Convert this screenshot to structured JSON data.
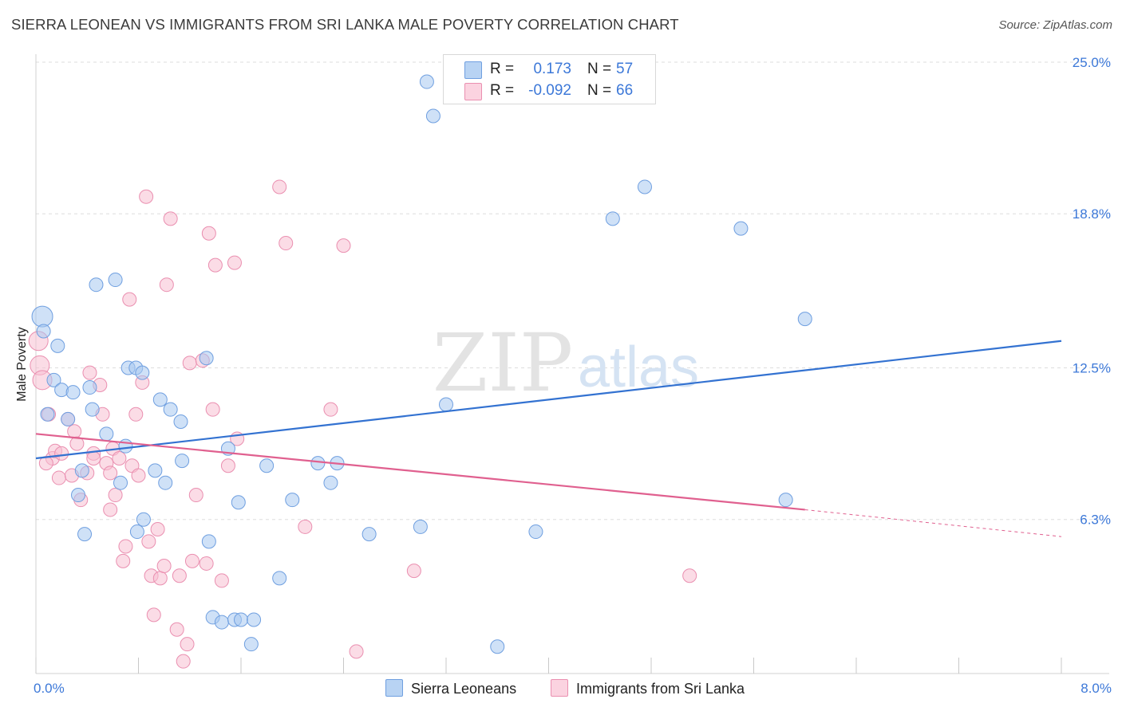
{
  "title": "SIERRA LEONEAN VS IMMIGRANTS FROM SRI LANKA MALE POVERTY CORRELATION CHART",
  "source": "Source: ZipAtlas.com",
  "watermark": {
    "zip": "ZIP",
    "atlas": "atlas"
  },
  "legend": {
    "rows": [
      {
        "r_label": "R =",
        "r_value": "0.173",
        "n_label": "N =",
        "n_value": "57",
        "color": "#a8c8f0",
        "border": "#6f9fe0"
      },
      {
        "r_label": "R =",
        "r_value": "-0.092",
        "n_label": "N =",
        "n_value": "66",
        "color": "#f7bfd2",
        "border": "#ea8fb0"
      }
    ]
  },
  "bottom_legend": {
    "series1": "Sierra Leoneans",
    "series2": "Immigrants from Sri Lanka"
  },
  "colors": {
    "blue_fill": "#a8c8f0",
    "blue_stroke": "#6f9fe0",
    "blue_line": "#3372d1",
    "pink_fill": "#f7bfd2",
    "pink_stroke": "#ea8fb0",
    "pink_line": "#e0608f",
    "axis_text": "#3c78d8",
    "grid": "#dddddd"
  },
  "chart_data": {
    "type": "scatter",
    "title": "SIERRA LEONEAN VS IMMIGRANTS FROM SRI LANKA MALE POVERTY CORRELATION CHART",
    "xlabel": "",
    "ylabel": "Male Poverty",
    "xlim": [
      0,
      8.0
    ],
    "ylim": [
      0,
      25.0
    ],
    "x_tick_labels": [
      "0.0%",
      "8.0%"
    ],
    "y_ticks": [
      6.3,
      12.5,
      18.8,
      25.0
    ],
    "y_tick_labels": [
      "6.3%",
      "12.5%",
      "18.8%",
      "25.0%"
    ],
    "series": [
      {
        "name": "Sierra Leoneans",
        "r": 0.173,
        "n": 57,
        "trend": {
          "x": [
            0,
            8.0
          ],
          "y": [
            8.8,
            13.6
          ]
        },
        "points": [
          [
            0.05,
            14.6
          ],
          [
            0.06,
            14.0
          ],
          [
            0.09,
            10.6
          ],
          [
            0.14,
            12.0
          ],
          [
            0.17,
            13.4
          ],
          [
            0.2,
            11.6
          ],
          [
            0.25,
            10.4
          ],
          [
            0.29,
            11.5
          ],
          [
            0.33,
            7.3
          ],
          [
            0.36,
            8.3
          ],
          [
            0.38,
            5.7
          ],
          [
            0.42,
            11.7
          ],
          [
            0.44,
            10.8
          ],
          [
            0.47,
            15.9
          ],
          [
            0.55,
            9.8
          ],
          [
            0.62,
            16.1
          ],
          [
            0.66,
            7.8
          ],
          [
            0.7,
            9.3
          ],
          [
            0.72,
            12.5
          ],
          [
            0.78,
            12.5
          ],
          [
            0.79,
            5.8
          ],
          [
            0.83,
            12.3
          ],
          [
            0.84,
            6.3
          ],
          [
            0.93,
            8.3
          ],
          [
            0.97,
            11.2
          ],
          [
            1.01,
            7.8
          ],
          [
            1.05,
            10.8
          ],
          [
            1.13,
            10.3
          ],
          [
            1.14,
            8.7
          ],
          [
            1.33,
            12.9
          ],
          [
            1.35,
            5.4
          ],
          [
            1.38,
            2.3
          ],
          [
            1.45,
            2.1
          ],
          [
            1.5,
            9.2
          ],
          [
            1.55,
            2.2
          ],
          [
            1.58,
            7.0
          ],
          [
            1.6,
            2.2
          ],
          [
            1.7,
            2.2
          ],
          [
            1.68,
            1.2
          ],
          [
            1.8,
            8.5
          ],
          [
            1.9,
            3.9
          ],
          [
            2.0,
            7.1
          ],
          [
            2.2,
            8.6
          ],
          [
            2.3,
            7.8
          ],
          [
            2.35,
            8.6
          ],
          [
            2.6,
            5.7
          ],
          [
            3.0,
            6.0
          ],
          [
            3.05,
            24.2
          ],
          [
            3.1,
            22.8
          ],
          [
            3.2,
            11.0
          ],
          [
            3.6,
            1.1
          ],
          [
            3.9,
            5.8
          ],
          [
            4.5,
            18.6
          ],
          [
            4.75,
            19.9
          ],
          [
            5.5,
            18.2
          ],
          [
            5.85,
            7.1
          ],
          [
            6.0,
            14.5
          ]
        ]
      },
      {
        "name": "Immigrants from Sri Lanka",
        "r": -0.092,
        "n": 66,
        "trend": {
          "x": [
            0,
            6.0
          ],
          "y": [
            9.8,
            6.7
          ]
        },
        "trend_dashed": {
          "x": [
            6.0,
            8.0
          ],
          "y": [
            6.7,
            5.6
          ]
        },
        "points": [
          [
            0.02,
            13.6
          ],
          [
            0.03,
            12.6
          ],
          [
            0.05,
            12.0
          ],
          [
            0.1,
            10.6
          ],
          [
            0.13,
            8.8
          ],
          [
            0.15,
            9.1
          ],
          [
            0.18,
            8.0
          ],
          [
            0.2,
            9.0
          ],
          [
            0.25,
            10.4
          ],
          [
            0.28,
            8.1
          ],
          [
            0.3,
            9.9
          ],
          [
            0.32,
            9.4
          ],
          [
            0.35,
            7.1
          ],
          [
            0.4,
            8.2
          ],
          [
            0.42,
            12.3
          ],
          [
            0.45,
            9.0
          ],
          [
            0.5,
            11.8
          ],
          [
            0.52,
            10.6
          ],
          [
            0.55,
            8.6
          ],
          [
            0.58,
            6.7
          ],
          [
            0.6,
            9.2
          ],
          [
            0.62,
            7.3
          ],
          [
            0.65,
            8.8
          ],
          [
            0.68,
            4.6
          ],
          [
            0.7,
            5.2
          ],
          [
            0.73,
            15.3
          ],
          [
            0.75,
            8.5
          ],
          [
            0.78,
            10.6
          ],
          [
            0.8,
            8.1
          ],
          [
            0.83,
            11.9
          ],
          [
            0.86,
            19.5
          ],
          [
            0.88,
            5.4
          ],
          [
            0.9,
            4.0
          ],
          [
            0.92,
            2.4
          ],
          [
            0.95,
            5.9
          ],
          [
            0.97,
            3.9
          ],
          [
            1.0,
            4.4
          ],
          [
            1.02,
            15.9
          ],
          [
            1.05,
            18.6
          ],
          [
            1.1,
            1.8
          ],
          [
            1.12,
            4.0
          ],
          [
            1.15,
            0.5
          ],
          [
            1.18,
            1.2
          ],
          [
            1.2,
            12.7
          ],
          [
            1.22,
            4.6
          ],
          [
            1.25,
            7.3
          ],
          [
            1.3,
            12.8
          ],
          [
            1.33,
            4.5
          ],
          [
            1.35,
            18.0
          ],
          [
            1.38,
            10.8
          ],
          [
            1.4,
            16.7
          ],
          [
            1.45,
            3.8
          ],
          [
            1.5,
            8.5
          ],
          [
            1.55,
            16.8
          ],
          [
            1.57,
            9.6
          ],
          [
            1.9,
            19.9
          ],
          [
            1.95,
            17.6
          ],
          [
            2.1,
            6.0
          ],
          [
            2.3,
            10.8
          ],
          [
            2.4,
            17.5
          ],
          [
            2.5,
            0.9
          ],
          [
            2.95,
            4.2
          ],
          [
            5.1,
            4.0
          ],
          [
            0.08,
            8.6
          ],
          [
            0.45,
            8.8
          ],
          [
            0.58,
            8.2
          ]
        ]
      }
    ]
  }
}
